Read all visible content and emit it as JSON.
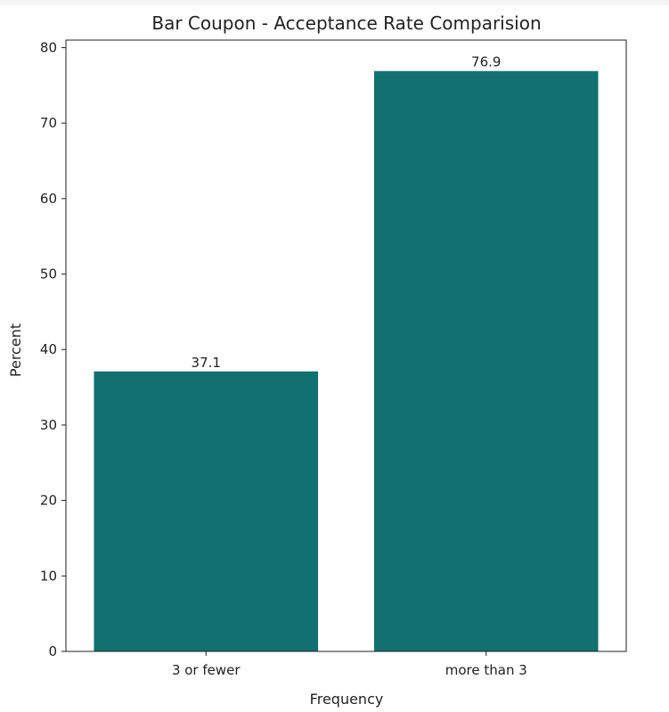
{
  "chart_data": {
    "type": "bar",
    "title": "Bar Coupon - Acceptance Rate Comparision",
    "xlabel": "Frequency",
    "ylabel": "Percent",
    "categories": [
      "3 or fewer",
      "more than 3"
    ],
    "values": [
      37.1,
      76.9
    ],
    "data_labels": [
      "37.1",
      "76.9"
    ],
    "ylim": [
      0,
      81
    ],
    "yticks": [
      0,
      10,
      20,
      30,
      40,
      50,
      60,
      70,
      80
    ],
    "bar_color": "#137070",
    "grid": false,
    "legend": "none"
  }
}
